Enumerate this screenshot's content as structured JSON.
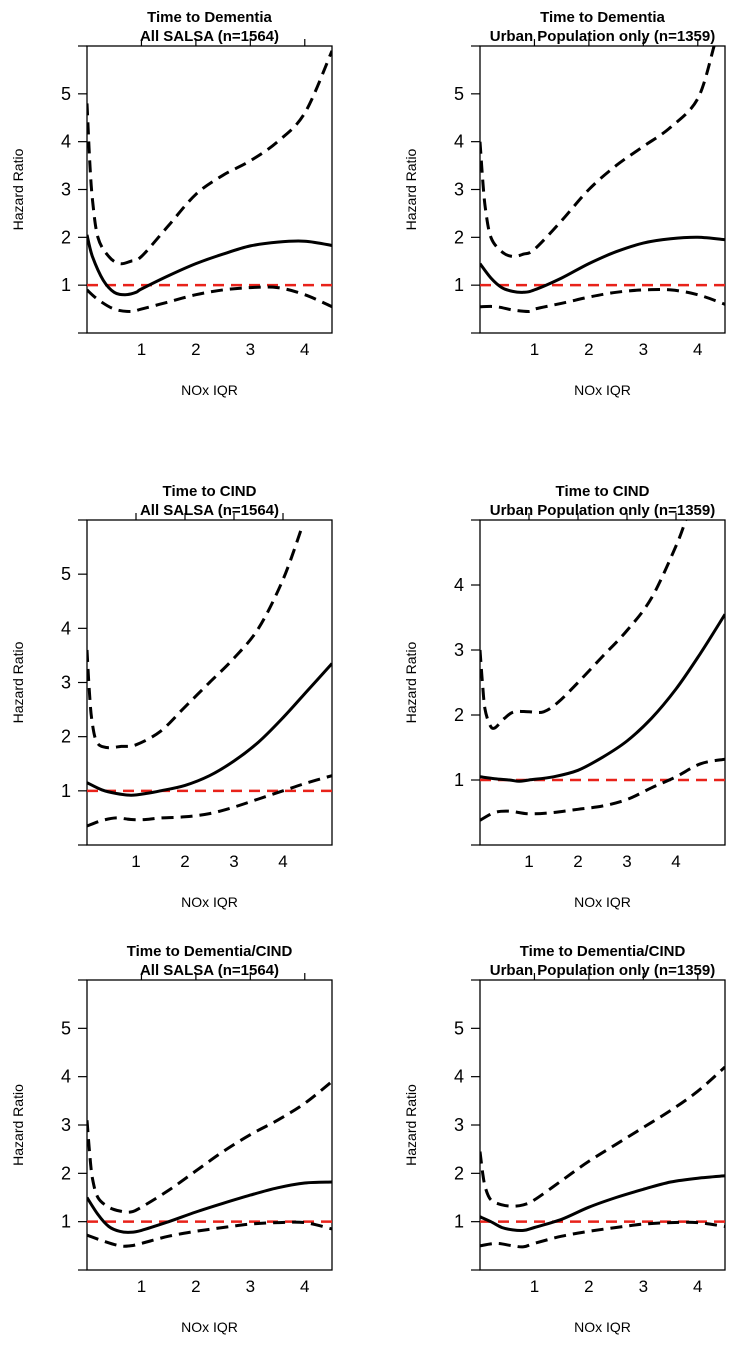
{
  "chart_data": [
    {
      "type": "line",
      "title": "Time to Dementia",
      "subtitle": "All SALSA (n=1564)",
      "xlabel": "NOx IQR",
      "ylabel": "Hazard Ratio",
      "xlim": [
        0,
        4.5
      ],
      "ylim": [
        0,
        6
      ],
      "xticks": [
        "1",
        "2",
        "3",
        "4"
      ],
      "yticks": [
        "1",
        "2",
        "3",
        "4",
        "5"
      ],
      "reference_line": 1,
      "colors": {
        "estimate": "#000000",
        "ci": "#000000",
        "reference": "#e8221a"
      },
      "series": [
        {
          "x": [
            0,
            0.1,
            0.3,
            0.5,
            0.7,
            0.9,
            1,
            1.5,
            2,
            2.5,
            3,
            3.5,
            4,
            4.5
          ],
          "values": [
            2.05,
            1.6,
            1.1,
            0.85,
            0.8,
            0.85,
            0.92,
            1.2,
            1.45,
            1.65,
            1.82,
            1.9,
            1.92,
            1.83
          ]
        },
        {
          "x": [
            0,
            0.05,
            0.1,
            0.2,
            0.4,
            0.6,
            0.8,
            1,
            1.5,
            2,
            2.5,
            3,
            3.5,
            4,
            4.5
          ],
          "values": [
            4.8,
            3.6,
            2.8,
            2.0,
            1.6,
            1.45,
            1.5,
            1.6,
            2.25,
            2.9,
            3.3,
            3.6,
            4.0,
            4.6,
            5.9
          ]
        },
        {
          "x": [
            0,
            0.2,
            0.5,
            0.8,
            1,
            1.5,
            2,
            2.5,
            3,
            3.5,
            4,
            4.5
          ],
          "values": [
            0.9,
            0.7,
            0.5,
            0.45,
            0.5,
            0.65,
            0.8,
            0.9,
            0.95,
            0.95,
            0.8,
            0.55
          ]
        }
      ]
    },
    {
      "type": "line",
      "title": "Time to Dementia",
      "subtitle": "Urban Population only (n=1359)",
      "xlabel": "NOx IQR",
      "ylabel": "Hazard Ratio",
      "xlim": [
        0,
        4.5
      ],
      "ylim": [
        0,
        6
      ],
      "xticks": [
        "1",
        "2",
        "3",
        "4"
      ],
      "yticks": [
        "1",
        "2",
        "3",
        "4",
        "5"
      ],
      "reference_line": 1,
      "colors": {
        "estimate": "#000000",
        "ci": "#000000",
        "reference": "#e8221a"
      },
      "series": [
        {
          "x": [
            0,
            0.2,
            0.4,
            0.6,
            0.8,
            1,
            1.5,
            2,
            2.5,
            3,
            3.5,
            4,
            4.5
          ],
          "values": [
            1.45,
            1.15,
            0.95,
            0.87,
            0.85,
            0.9,
            1.15,
            1.45,
            1.7,
            1.88,
            1.97,
            2.0,
            1.95
          ]
        },
        {
          "x": [
            0,
            0.05,
            0.1,
            0.2,
            0.4,
            0.6,
            0.8,
            1,
            1.5,
            2,
            2.5,
            3,
            3.5,
            4,
            4.3
          ],
          "values": [
            4.0,
            3.2,
            2.6,
            2.0,
            1.7,
            1.6,
            1.65,
            1.75,
            2.35,
            3.0,
            3.5,
            3.9,
            4.3,
            4.9,
            6.0
          ]
        },
        {
          "x": [
            0,
            0.3,
            0.6,
            0.9,
            1,
            1.5,
            2,
            2.5,
            3,
            3.5,
            4,
            4.5
          ],
          "values": [
            0.55,
            0.55,
            0.48,
            0.45,
            0.5,
            0.62,
            0.75,
            0.85,
            0.9,
            0.9,
            0.8,
            0.6
          ]
        }
      ]
    },
    {
      "type": "line",
      "title": "Time to CIND",
      "subtitle": "All SALSA (n=1564)",
      "xlabel": "NOx IQR",
      "ylabel": "Hazard Ratio",
      "xlim": [
        0,
        5
      ],
      "ylim": [
        0,
        6
      ],
      "xticks": [
        "1",
        "2",
        "3",
        "4"
      ],
      "yticks": [
        "1",
        "2",
        "3",
        "4",
        "5"
      ],
      "reference_line": 1,
      "colors": {
        "estimate": "#000000",
        "ci": "#000000",
        "reference": "#e8221a"
      },
      "series": [
        {
          "x": [
            0,
            0.3,
            0.6,
            0.9,
            1.2,
            1.5,
            2,
            2.5,
            3,
            3.5,
            4,
            4.5,
            5
          ],
          "values": [
            1.15,
            1.02,
            0.95,
            0.92,
            0.95,
            1.0,
            1.1,
            1.28,
            1.55,
            1.9,
            2.35,
            2.85,
            3.35
          ]
        },
        {
          "x": [
            0,
            0.05,
            0.1,
            0.2,
            0.4,
            0.7,
            1,
            1.5,
            2,
            2.5,
            3,
            3.5,
            4,
            4.4
          ],
          "values": [
            3.6,
            2.8,
            2.3,
            1.9,
            1.8,
            1.82,
            1.85,
            2.1,
            2.55,
            3.0,
            3.45,
            4.0,
            4.9,
            5.9
          ]
        },
        {
          "x": [
            0,
            0.3,
            0.6,
            0.9,
            1.2,
            1.5,
            2,
            2.5,
            3,
            3.5,
            4,
            4.5,
            5
          ],
          "values": [
            0.35,
            0.45,
            0.5,
            0.47,
            0.47,
            0.5,
            0.52,
            0.58,
            0.7,
            0.85,
            1.0,
            1.15,
            1.28
          ]
        }
      ]
    },
    {
      "type": "line",
      "title": "Time to CIND",
      "subtitle": "Urban Population only (n=1359)",
      "xlabel": "NOx IQR",
      "ylabel": "Hazard Ratio",
      "xlim": [
        0,
        5
      ],
      "ylim": [
        0,
        5
      ],
      "xticks": [
        "1",
        "2",
        "3",
        "4"
      ],
      "yticks": [
        "1",
        "2",
        "3",
        "4"
      ],
      "reference_line": 1,
      "colors": {
        "estimate": "#000000",
        "ci": "#000000",
        "reference": "#e8221a"
      },
      "series": [
        {
          "x": [
            0,
            0.3,
            0.6,
            0.8,
            1,
            1.5,
            2,
            2.5,
            3,
            3.5,
            4,
            4.5,
            5
          ],
          "values": [
            1.05,
            1.02,
            1.0,
            0.98,
            1.0,
            1.05,
            1.15,
            1.35,
            1.6,
            1.95,
            2.4,
            2.95,
            3.55
          ]
        },
        {
          "x": [
            0,
            0.05,
            0.1,
            0.2,
            0.3,
            0.5,
            0.7,
            1,
            1.3,
            1.6,
            2,
            2.5,
            3,
            3.5,
            4,
            4.2
          ],
          "values": [
            3.0,
            2.5,
            2.1,
            1.85,
            1.8,
            1.95,
            2.05,
            2.05,
            2.05,
            2.2,
            2.5,
            2.9,
            3.3,
            3.8,
            4.6,
            5.0
          ]
        },
        {
          "x": [
            0,
            0.3,
            0.6,
            1,
            1.5,
            2,
            2.5,
            3,
            3.5,
            4,
            4.5,
            5
          ],
          "values": [
            0.38,
            0.5,
            0.52,
            0.48,
            0.5,
            0.55,
            0.6,
            0.7,
            0.88,
            1.05,
            1.25,
            1.32
          ]
        }
      ]
    },
    {
      "type": "line",
      "title": "Time to Dementia/CIND",
      "subtitle": "All SALSA (n=1564)",
      "xlabel": "NOx IQR",
      "ylabel": "Hazard Ratio",
      "xlim": [
        0,
        4.5
      ],
      "ylim": [
        0,
        6
      ],
      "xticks": [
        "1",
        "2",
        "3",
        "4"
      ],
      "yticks": [
        "1",
        "2",
        "3",
        "4",
        "5"
      ],
      "reference_line": 1,
      "colors": {
        "estimate": "#000000",
        "ci": "#000000",
        "reference": "#e8221a"
      },
      "series": [
        {
          "x": [
            0,
            0.2,
            0.4,
            0.6,
            0.8,
            1,
            1.5,
            2,
            2.5,
            3,
            3.5,
            4,
            4.5
          ],
          "values": [
            1.5,
            1.15,
            0.9,
            0.8,
            0.78,
            0.82,
            1.0,
            1.2,
            1.38,
            1.55,
            1.7,
            1.8,
            1.82
          ]
        },
        {
          "x": [
            0,
            0.05,
            0.1,
            0.2,
            0.4,
            0.6,
            0.8,
            1,
            1.5,
            2,
            2.5,
            3,
            3.5,
            4,
            4.5
          ],
          "values": [
            3.1,
            2.4,
            1.9,
            1.5,
            1.3,
            1.22,
            1.2,
            1.3,
            1.65,
            2.05,
            2.45,
            2.8,
            3.1,
            3.45,
            3.9
          ]
        },
        {
          "x": [
            0,
            0.3,
            0.6,
            0.8,
            1,
            1.5,
            2,
            2.5,
            3,
            3.5,
            4,
            4.5
          ],
          "values": [
            0.72,
            0.6,
            0.5,
            0.5,
            0.55,
            0.7,
            0.8,
            0.88,
            0.95,
            0.98,
            0.98,
            0.85
          ]
        }
      ]
    },
    {
      "type": "line",
      "title": "Time to Dementia/CIND",
      "subtitle": "Urban Population only (n=1359)",
      "xlabel": "NOx IQR",
      "ylabel": "Hazard Ratio",
      "xlim": [
        0,
        4.5
      ],
      "ylim": [
        0,
        6
      ],
      "xticks": [
        "1",
        "2",
        "3",
        "4"
      ],
      "yticks": [
        "1",
        "2",
        "3",
        "4",
        "5"
      ],
      "reference_line": 1,
      "colors": {
        "estimate": "#000000",
        "ci": "#000000",
        "reference": "#e8221a"
      },
      "series": [
        {
          "x": [
            0,
            0.2,
            0.4,
            0.6,
            0.8,
            1,
            1.5,
            2,
            2.5,
            3,
            3.5,
            4,
            4.5
          ],
          "values": [
            1.1,
            1.0,
            0.88,
            0.83,
            0.82,
            0.88,
            1.05,
            1.3,
            1.5,
            1.67,
            1.82,
            1.9,
            1.95
          ]
        },
        {
          "x": [
            0,
            0.05,
            0.1,
            0.2,
            0.4,
            0.6,
            0.8,
            1,
            1.5,
            2,
            2.5,
            3,
            3.5,
            4,
            4.5
          ],
          "values": [
            2.45,
            2.0,
            1.7,
            1.45,
            1.35,
            1.32,
            1.35,
            1.45,
            1.85,
            2.25,
            2.6,
            2.95,
            3.3,
            3.7,
            4.2
          ]
        },
        {
          "x": [
            0,
            0.3,
            0.6,
            0.8,
            1,
            1.5,
            2,
            2.5,
            3,
            3.5,
            4,
            4.5
          ],
          "values": [
            0.5,
            0.55,
            0.5,
            0.48,
            0.55,
            0.7,
            0.8,
            0.88,
            0.95,
            0.98,
            0.98,
            0.9
          ]
        }
      ]
    }
  ]
}
